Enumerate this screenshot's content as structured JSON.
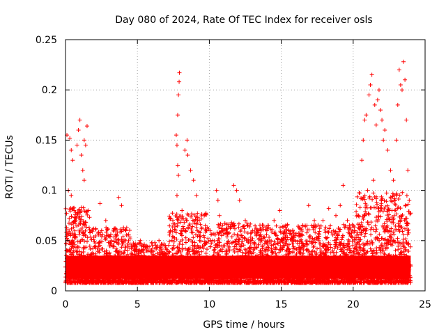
{
  "chart_data": {
    "type": "scatter",
    "title": "Day 080 of 2024, Rate Of TEC Index for receiver osls",
    "xlabel": "GPS time / hours",
    "ylabel": "ROTI / TECUs",
    "xlim": [
      0,
      25
    ],
    "ylim": [
      0,
      0.25
    ],
    "xticks": [
      0,
      5,
      10,
      15,
      20,
      25
    ],
    "xtick_labels": [
      "0",
      "5",
      "10",
      "15",
      "20",
      "25"
    ],
    "yticks": [
      0,
      0.05,
      0.1,
      0.15,
      0.2,
      0.25
    ],
    "ytick_labels": [
      "0",
      "0.05",
      "0.1",
      "0.15",
      "0.2",
      "0.25"
    ],
    "grid": true,
    "marker": "+",
    "color": "#ff0000",
    "series": [
      {
        "name": "ROTI",
        "points": [
          [
            0.1,
            0.155
          ],
          [
            0.3,
            0.152
          ],
          [
            0.4,
            0.14
          ],
          [
            0.5,
            0.13
          ],
          [
            0.9,
            0.16
          ],
          [
            1.0,
            0.17
          ],
          [
            0.8,
            0.145
          ],
          [
            1.1,
            0.135
          ],
          [
            1.2,
            0.12
          ],
          [
            1.3,
            0.15
          ],
          [
            1.4,
            0.145
          ],
          [
            1.5,
            0.164
          ],
          [
            1.3,
            0.11
          ],
          [
            0.2,
            0.1
          ],
          [
            0.4,
            0.095
          ],
          [
            0.6,
            0.08
          ],
          [
            0.7,
            0.07
          ],
          [
            1.6,
            0.08
          ],
          [
            2.4,
            0.087
          ],
          [
            2.8,
            0.07
          ],
          [
            3.7,
            0.093
          ],
          [
            3.9,
            0.085
          ],
          [
            4.2,
            0.06
          ],
          [
            5.2,
            0.05
          ],
          [
            6.0,
            0.048
          ],
          [
            6.5,
            0.05
          ],
          [
            7.3,
            0.06
          ],
          [
            7.7,
            0.155
          ],
          [
            7.75,
            0.145
          ],
          [
            7.8,
            0.175
          ],
          [
            7.85,
            0.195
          ],
          [
            7.9,
            0.208
          ],
          [
            7.92,
            0.217
          ],
          [
            7.8,
            0.125
          ],
          [
            7.85,
            0.115
          ],
          [
            7.75,
            0.095
          ],
          [
            8.1,
            0.08
          ],
          [
            8.3,
            0.14
          ],
          [
            8.45,
            0.15
          ],
          [
            8.5,
            0.135
          ],
          [
            8.7,
            0.12
          ],
          [
            8.9,
            0.11
          ],
          [
            9.1,
            0.095
          ],
          [
            9.3,
            0.07
          ],
          [
            9.6,
            0.055
          ],
          [
            10.5,
            0.1
          ],
          [
            10.6,
            0.09
          ],
          [
            10.7,
            0.075
          ],
          [
            11.0,
            0.06
          ],
          [
            11.7,
            0.105
          ],
          [
            11.9,
            0.1
          ],
          [
            12.1,
            0.09
          ],
          [
            12.5,
            0.07
          ],
          [
            13.0,
            0.06
          ],
          [
            13.5,
            0.055
          ],
          [
            14.0,
            0.06
          ],
          [
            14.5,
            0.07
          ],
          [
            14.9,
            0.08
          ],
          [
            15.5,
            0.06
          ],
          [
            16.0,
            0.05
          ],
          [
            16.5,
            0.065
          ],
          [
            16.9,
            0.085
          ],
          [
            17.3,
            0.07
          ],
          [
            17.9,
            0.07
          ],
          [
            18.3,
            0.082
          ],
          [
            18.8,
            0.075
          ],
          [
            19.1,
            0.085
          ],
          [
            19.3,
            0.105
          ],
          [
            19.6,
            0.07
          ],
          [
            20.1,
            0.06
          ],
          [
            20.6,
            0.13
          ],
          [
            20.7,
            0.15
          ],
          [
            20.8,
            0.17
          ],
          [
            20.9,
            0.175
          ],
          [
            21.1,
            0.195
          ],
          [
            21.2,
            0.205
          ],
          [
            21.3,
            0.215
          ],
          [
            21.5,
            0.185
          ],
          [
            21.6,
            0.165
          ],
          [
            21.7,
            0.19
          ],
          [
            21.8,
            0.2
          ],
          [
            21.9,
            0.18
          ],
          [
            22.0,
            0.17
          ],
          [
            22.1,
            0.15
          ],
          [
            22.2,
            0.16
          ],
          [
            22.4,
            0.14
          ],
          [
            22.6,
            0.12
          ],
          [
            22.8,
            0.11
          ],
          [
            23.0,
            0.15
          ],
          [
            23.1,
            0.185
          ],
          [
            23.2,
            0.22
          ],
          [
            23.3,
            0.205
          ],
          [
            23.4,
            0.2
          ],
          [
            23.5,
            0.228
          ],
          [
            23.6,
            0.21
          ],
          [
            23.7,
            0.17
          ],
          [
            23.8,
            0.12
          ],
          [
            23.9,
            0.09
          ],
          [
            21.4,
            0.11
          ],
          [
            21.0,
            0.1
          ],
          [
            22.5,
            0.08
          ],
          [
            23.0,
            0.095
          ]
        ]
      }
    ]
  }
}
